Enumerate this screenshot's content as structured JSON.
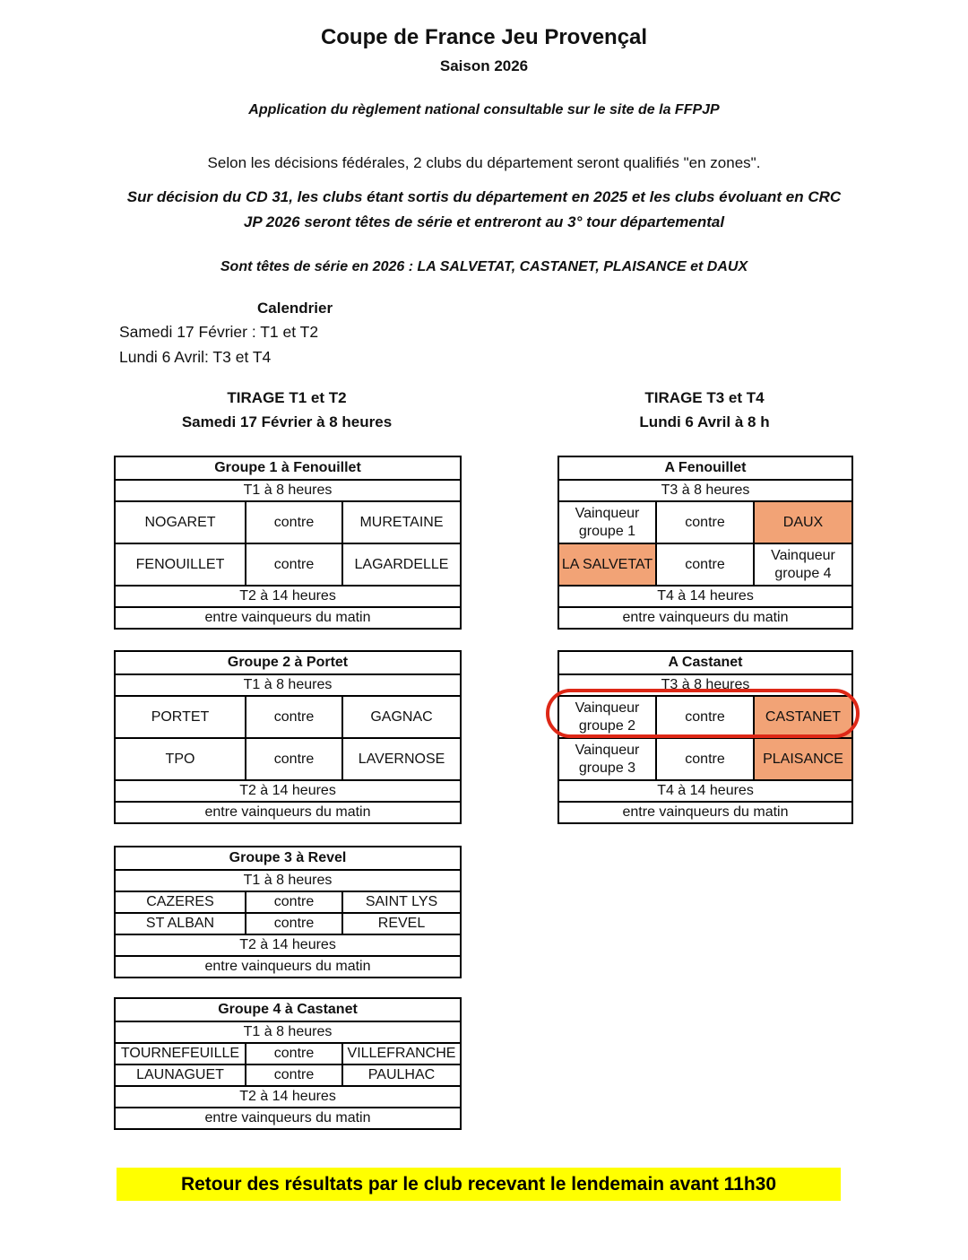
{
  "doc": {
    "title": "Coupe de France Jeu Provençal",
    "season": "Saison 2026",
    "rule_note": "Application du règlement national consultable sur le site de la FFPJP",
    "federal_note": "Selon les décisions fédérales, 2 clubs du département seront qualifiés \"en zones\".",
    "cd31_note_line1": "Sur décision du CD 31, les clubs étant sortis du département en 2025 et les clubs évoluant en CRC",
    "cd31_note_line2": "JP 2026 seront têtes de série et entreront au 3° tour départemental",
    "seeds_note": "Sont têtes de série en 2026 : LA SALVETAT, CASTANET, PLAISANCE et DAUX",
    "calendar_heading": "Calendrier",
    "calendar_line1": "Samedi 17 Février : T1 et T2",
    "calendar_line2": "Lundi 6 Avril: T3 et T4",
    "footer_banner": "Retour des résultats par le club recevant le lendemain avant 11h30"
  },
  "draw_left": {
    "title": "TIRAGE T1 et T2",
    "subtitle": "Samedi 17 Février à 8 heures"
  },
  "draw_right": {
    "title": "TIRAGE T3 et T4",
    "subtitle": "Lundi 6 Avril à 8 h"
  },
  "left_tables": [
    {
      "header": "Groupe 1 à Fenouillet",
      "session1": "T1 à 8 heures",
      "matches": [
        {
          "home": "NOGARET",
          "versus": "contre",
          "away": "MURETAINE"
        },
        {
          "home": "FENOUILLET",
          "versus": "contre",
          "away": "LAGARDELLE"
        }
      ],
      "session2": "T2 à 14 heures",
      "note": "entre vainqueurs du matin"
    },
    {
      "header": "Groupe 2 à Portet",
      "session1": "T1 à 8 heures",
      "matches": [
        {
          "home": "PORTET",
          "versus": "contre",
          "away": "GAGNAC"
        },
        {
          "home": "TPO",
          "versus": "contre",
          "away": "LAVERNOSE"
        }
      ],
      "session2": "T2 à 14 heures",
      "note": "entre vainqueurs du matin"
    },
    {
      "header": "Groupe 3 à Revel",
      "session1": "T1 à 8 heures",
      "matches": [
        {
          "home": "CAZERES",
          "versus": "contre",
          "away": "SAINT LYS"
        },
        {
          "home": "ST ALBAN",
          "versus": "contre",
          "away": "REVEL"
        }
      ],
      "session2": "T2 à 14 heures",
      "note": "entre vainqueurs du matin"
    },
    {
      "header": "Groupe 4 à Castanet",
      "session1": "T1 à 8 heures",
      "matches": [
        {
          "home": "TOURNEFEUILLE",
          "versus": "contre",
          "away": "VILLEFRANCHE"
        },
        {
          "home": "LAUNAGUET",
          "versus": "contre",
          "away": "PAULHAC"
        }
      ],
      "session2": "T2 à 14 heures",
      "note": "entre vainqueurs du matin"
    }
  ],
  "right_tables": [
    {
      "header": "A Fenouillet",
      "session1": "T3 à 8 heures",
      "matches": [
        {
          "home": "Vainqueur groupe 1",
          "versus": "contre",
          "away": "DAUX",
          "away_highlighted": true
        },
        {
          "home": "LA SALVETAT",
          "home_highlighted": true,
          "versus": "contre",
          "away": "Vainqueur groupe 4"
        }
      ],
      "session2": "T4 à 14 heures",
      "note": "entre vainqueurs du matin"
    },
    {
      "header": "A Castanet",
      "session1": "T3 à 8 heures",
      "matches": [
        {
          "home": "Vainqueur groupe 2",
          "versus": "contre",
          "away": "CASTANET",
          "away_highlighted": true,
          "annotated": true
        },
        {
          "home": "Vainqueur groupe 3",
          "versus": "contre",
          "away": "PLAISANCE",
          "away_highlighted": true
        }
      ],
      "session2": "T4 à 14 heures",
      "note": "entre vainqueurs du matin"
    }
  ],
  "annotation": {
    "shape": "ellipse",
    "color": "#DE2817",
    "around": "Vainqueur groupe 2 contre CASTANET"
  },
  "colors": {
    "highlight_fill": "#F2A376",
    "annotation_red": "#DE2817",
    "banner_yellow": "#FFFF00",
    "text": "#111111"
  }
}
